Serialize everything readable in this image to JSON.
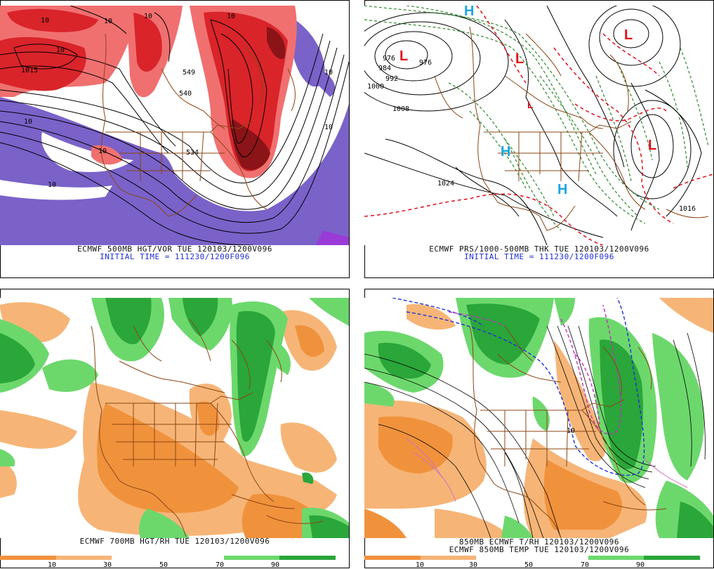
{
  "panels": {
    "top_left": {
      "line1": "ECMWF 500MB HGT/VOR TUE 120103/1200V096",
      "line2": "INITIAL TIME = 111230/1200F096",
      "labels": [
        "10",
        "1015",
        "10",
        "10",
        "10",
        "549",
        "540",
        "10",
        "10",
        "10",
        "534",
        "10",
        "10",
        "10"
      ]
    },
    "top_right": {
      "line1": "ECMWF PRS/1000-500MB THK TUE 120103/1200V096",
      "line2": "INITIAL TIME = 111230/1200F096",
      "isobars": [
        "976",
        "976",
        "984",
        "992",
        "1000",
        "1008",
        "1024",
        "1016"
      ],
      "lows": [
        "L",
        "L",
        "L",
        "L",
        "L"
      ],
      "highs": [
        "H",
        "H",
        "H"
      ]
    },
    "bottom_left": {
      "line1": "ECMWF 700MB HGT/RH TUE 120103/1200V096",
      "scale_ticks": [
        "10",
        "30",
        "50",
        "70",
        "90"
      ]
    },
    "bottom_right": {
      "line1": "850MB ECMWF T/RH 120103/1200V096",
      "line2": "ECMWF 850MB TEMP TUE 120103/1200V096",
      "scale_ticks": [
        "10",
        "30",
        "50",
        "70",
        "90"
      ]
    }
  },
  "colors": {
    "vort_red": "#d9242a",
    "vort_pink": "#f07070",
    "vort_purple": "#7a62c9",
    "rh_green": "#2aa63a",
    "rh_lightgreen": "#6cd86c",
    "rh_orange": "#f0923c",
    "rh_lightorange": "#f6b577",
    "border_brown": "#8b4513",
    "low_red": "#e0101a",
    "high_blue": "#1aa6e0"
  }
}
